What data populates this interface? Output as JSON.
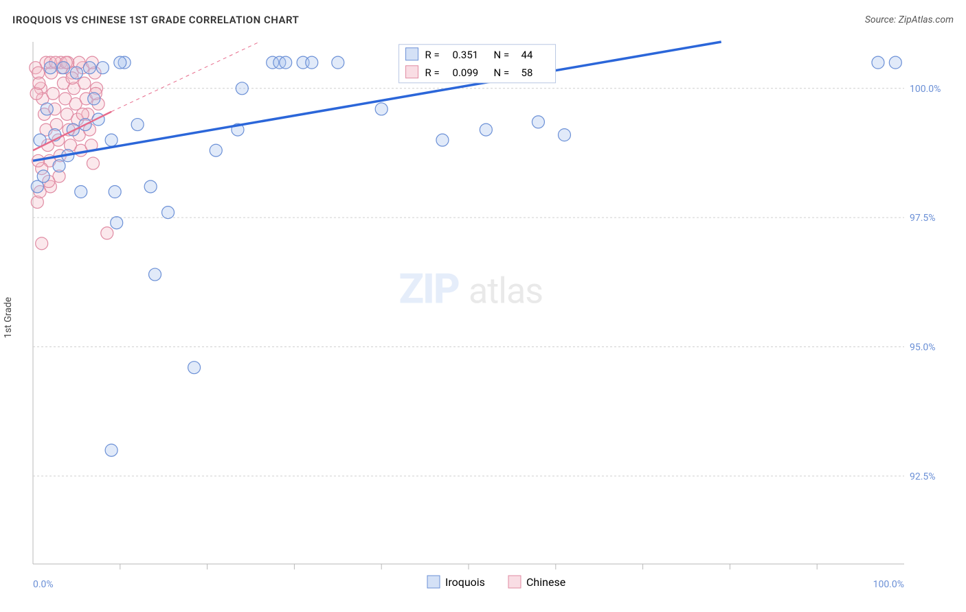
{
  "title": "IROQUOIS VS CHINESE 1ST GRADE CORRELATION CHART",
  "source": "Source: ZipAtlas.com",
  "y_axis_label": "1st Grade",
  "watermark": {
    "top": "ZIP",
    "bottom": "atlas"
  },
  "chart": {
    "type": "scatter",
    "x_range": [
      0,
      100
    ],
    "y_range": [
      90.8,
      100.9
    ],
    "x_tick_labels": {
      "0": "0.0%",
      "100": "100.0%"
    },
    "x_minor_ticks": [
      10,
      20,
      30,
      40,
      50,
      60,
      70,
      80,
      90
    ],
    "y_ticks": [
      {
        "v": 92.5,
        "label": "92.5%"
      },
      {
        "v": 95.0,
        "label": "95.0%"
      },
      {
        "v": 97.5,
        "label": "97.5%"
      },
      {
        "v": 100.0,
        "label": "100.0%"
      }
    ],
    "grid_color": "#d6d6d6",
    "frame_color": "#b8b8b8",
    "background_color": "#ffffff",
    "marker_radius": 9,
    "series": [
      {
        "name": "Iroquois",
        "color_stroke": "#6a8fd6",
        "color_fill": "#a9c4ee",
        "R": "0.351",
        "N": "44",
        "trend": {
          "x1": 0,
          "y1": 98.6,
          "x2": 79,
          "y2": 100.9,
          "style": "solid-blue"
        },
        "points": [
          [
            0.5,
            98.1
          ],
          [
            0.8,
            99.0
          ],
          [
            1.2,
            98.3
          ],
          [
            1.6,
            99.6
          ],
          [
            2.0,
            100.4
          ],
          [
            2.5,
            99.1
          ],
          [
            3.0,
            98.5
          ],
          [
            3.5,
            100.4
          ],
          [
            4.0,
            98.7
          ],
          [
            4.6,
            99.2
          ],
          [
            5.0,
            100.3
          ],
          [
            5.5,
            98.0
          ],
          [
            6.0,
            99.3
          ],
          [
            6.5,
            100.4
          ],
          [
            7.0,
            99.8
          ],
          [
            7.5,
            99.4
          ],
          [
            8.0,
            100.4
          ],
          [
            9.0,
            99.0
          ],
          [
            9.4,
            98.0
          ],
          [
            9.6,
            97.4
          ],
          [
            10.5,
            100.5
          ],
          [
            12.0,
            99.3
          ],
          [
            13.5,
            98.1
          ],
          [
            14.0,
            96.4
          ],
          [
            15.5,
            97.6
          ],
          [
            18.5,
            94.6
          ],
          [
            9.0,
            93.0
          ],
          [
            10.0,
            100.5
          ],
          [
            21.0,
            98.8
          ],
          [
            23.5,
            99.2
          ],
          [
            24.0,
            100.0
          ],
          [
            27.5,
            100.5
          ],
          [
            28.3,
            100.5
          ],
          [
            29.0,
            100.5
          ],
          [
            31.0,
            100.5
          ],
          [
            32.0,
            100.5
          ],
          [
            35.0,
            100.5
          ],
          [
            40.0,
            99.6
          ],
          [
            47.0,
            99.0
          ],
          [
            52.0,
            99.2
          ],
          [
            58.0,
            99.35
          ],
          [
            61.0,
            99.1
          ],
          [
            97.0,
            100.5
          ],
          [
            99.0,
            100.5
          ]
        ]
      },
      {
        "name": "Chinese",
        "color_stroke": "#e08aa2",
        "color_fill": "#f4bcc9",
        "R": "0.099",
        "N": "58",
        "trend_solid": {
          "x1": 0,
          "y1": 98.8,
          "x2": 9,
          "y2": 99.55
        },
        "trend_dash": {
          "x1": 9,
          "y1": 99.55,
          "x2": 26,
          "y2": 100.9
        },
        "points": [
          [
            0.3,
            100.4
          ],
          [
            0.6,
            100.3
          ],
          [
            0.9,
            100.0
          ],
          [
            1.1,
            99.8
          ],
          [
            1.3,
            99.5
          ],
          [
            1.5,
            99.2
          ],
          [
            1.7,
            98.9
          ],
          [
            1.9,
            98.6
          ],
          [
            2.1,
            100.3
          ],
          [
            2.3,
            99.9
          ],
          [
            2.5,
            99.6
          ],
          [
            2.7,
            99.3
          ],
          [
            2.9,
            99.0
          ],
          [
            3.1,
            98.7
          ],
          [
            3.3,
            100.4
          ],
          [
            3.5,
            100.1
          ],
          [
            3.7,
            99.8
          ],
          [
            3.9,
            99.5
          ],
          [
            4.1,
            99.2
          ],
          [
            4.3,
            98.9
          ],
          [
            4.5,
            100.3
          ],
          [
            4.7,
            100.0
          ],
          [
            4.9,
            99.7
          ],
          [
            5.1,
            99.4
          ],
          [
            5.3,
            99.1
          ],
          [
            5.5,
            98.8
          ],
          [
            5.7,
            100.4
          ],
          [
            5.9,
            100.1
          ],
          [
            6.1,
            99.8
          ],
          [
            6.3,
            99.5
          ],
          [
            6.5,
            99.2
          ],
          [
            6.7,
            98.9
          ],
          [
            6.9,
            98.55
          ],
          [
            7.1,
            100.3
          ],
          [
            7.3,
            100.0
          ],
          [
            7.5,
            99.7
          ],
          [
            3.0,
            98.3
          ],
          [
            1.0,
            98.45
          ],
          [
            2.0,
            98.1
          ],
          [
            0.5,
            97.8
          ],
          [
            0.4,
            99.9
          ],
          [
            0.7,
            100.1
          ],
          [
            4.5,
            100.2
          ],
          [
            5.3,
            100.5
          ],
          [
            5.7,
            99.5
          ],
          [
            3.2,
            100.5
          ],
          [
            6.8,
            100.5
          ],
          [
            7.2,
            99.9
          ],
          [
            4.0,
            100.5
          ],
          [
            1.5,
            100.5
          ],
          [
            2.0,
            100.5
          ],
          [
            2.6,
            100.5
          ],
          [
            3.8,
            100.5
          ],
          [
            8.5,
            97.2
          ],
          [
            1.0,
            97.0
          ],
          [
            0.8,
            98.0
          ],
          [
            1.8,
            98.2
          ],
          [
            0.6,
            98.6
          ]
        ]
      }
    ]
  },
  "inset_legend": {
    "rows": [
      {
        "swatch_stroke": "#6a8fd6",
        "swatch_fill": "#a9c4ee",
        "R_label": "R =",
        "R_val": "0.351",
        "N_label": "N =",
        "N_val": "44"
      },
      {
        "swatch_stroke": "#e08aa2",
        "swatch_fill": "#f4bcc9",
        "R_label": "R =",
        "R_val": "0.099",
        "N_label": "N =",
        "N_val": "58"
      }
    ],
    "border_color": "#b7c6e3",
    "bg_color": "#ffffff"
  },
  "bottom_legend": [
    {
      "swatch_stroke": "#6a8fd6",
      "swatch_fill": "#a9c4ee",
      "label": "Iroquois"
    },
    {
      "swatch_stroke": "#e08aa2",
      "swatch_fill": "#f4bcc9",
      "label": "Chinese"
    }
  ]
}
